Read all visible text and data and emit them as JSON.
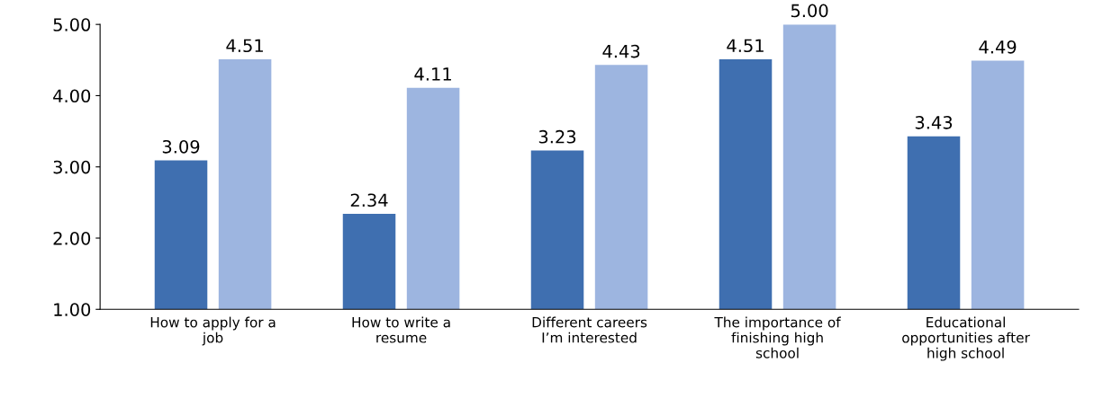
{
  "chart_data": {
    "type": "bar",
    "categories": [
      "How to apply for a\njob",
      "How to write a\nresume",
      "Different careers\nI’m interested",
      "The importance of\nfinishing high\nschool",
      "Educational\nopportunities after\nhigh school"
    ],
    "series": [
      {
        "color": "#3f6fb0",
        "values": [
          3.09,
          2.34,
          3.23,
          4.51,
          3.43
        ],
        "value_labels": [
          "3.09",
          "2.34",
          "3.23",
          "4.51",
          "3.43"
        ]
      },
      {
        "color": "#9db5e0",
        "values": [
          4.51,
          4.11,
          4.43,
          5.0,
          4.49
        ],
        "value_labels": [
          "4.51",
          "4.11",
          "4.43",
          "5.00",
          "4.49"
        ]
      }
    ],
    "ylim": [
      1,
      5
    ],
    "yticks": [
      {
        "value": 1,
        "label": "1.00"
      },
      {
        "value": 2,
        "label": "2.00"
      },
      {
        "value": 3,
        "label": "3.00"
      },
      {
        "value": 4,
        "label": "4.00"
      },
      {
        "value": 5,
        "label": "5.00"
      }
    ],
    "grid": false
  }
}
